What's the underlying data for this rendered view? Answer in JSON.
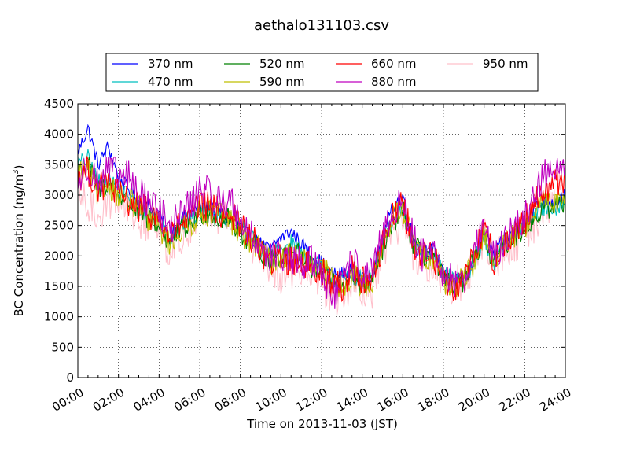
{
  "chart_data": {
    "type": "line",
    "title": "aethalo131103.csv",
    "xlabel": "Time on 2013-11-03 (JST)",
    "ylabel": "BC Concentration (ng/m",
    "ylabel_superscript": "3",
    "ylabel_suffix": ")",
    "xlim": [
      "00:00",
      "24:00"
    ],
    "ylim": [
      0,
      4500
    ],
    "x_ticks": [
      "00:00",
      "02:00",
      "04:00",
      "06:00",
      "08:00",
      "10:00",
      "12:00",
      "14:00",
      "16:00",
      "18:00",
      "20:00",
      "22:00",
      "24:00"
    ],
    "y_ticks": [
      0,
      500,
      1000,
      1500,
      2000,
      2500,
      3000,
      3500,
      4000,
      4500
    ],
    "grid": true,
    "legend_position": "top-center",
    "x": [
      "00:00",
      "00:30",
      "01:00",
      "01:30",
      "02:00",
      "02:30",
      "03:00",
      "03:30",
      "04:00",
      "04:30",
      "05:00",
      "05:30",
      "06:00",
      "06:30",
      "07:00",
      "07:30",
      "08:00",
      "08:30",
      "09:00",
      "09:30",
      "10:00",
      "10:30",
      "11:00",
      "11:30",
      "12:00",
      "12:30",
      "13:00",
      "13:30",
      "14:00",
      "14:30",
      "15:00",
      "15:30",
      "16:00",
      "16:30",
      "17:00",
      "17:30",
      "18:00",
      "18:30",
      "19:00",
      "19:30",
      "20:00",
      "20:30",
      "21:00",
      "21:30",
      "22:00",
      "22:30",
      "23:00",
      "23:30",
      "24:00"
    ],
    "series": [
      {
        "name": "370 nm",
        "color": "#0000ff",
        "values": [
          3700,
          4100,
          3500,
          3800,
          3300,
          3100,
          2900,
          2800,
          2700,
          2300,
          2600,
          2700,
          2800,
          2800,
          2700,
          2600,
          2500,
          2300,
          2200,
          2100,
          2300,
          2400,
          2200,
          2000,
          1900,
          1700,
          1700,
          1800,
          1600,
          1700,
          2300,
          2800,
          3000,
          2300,
          2100,
          2100,
          1700,
          1600,
          1600,
          1900,
          2400,
          2000,
          2300,
          2400,
          2600,
          2800,
          2900,
          2900,
          3000
        ]
      },
      {
        "name": "470 nm",
        "color": "#00bfbf",
        "values": [
          3500,
          3600,
          3200,
          3300,
          3100,
          3000,
          2800,
          2700,
          2600,
          2300,
          2500,
          2600,
          2700,
          2800,
          2700,
          2600,
          2500,
          2300,
          2100,
          2000,
          2100,
          2200,
          2100,
          1900,
          1800,
          1600,
          1600,
          1700,
          1600,
          1600,
          2200,
          2600,
          2800,
          2200,
          2000,
          2000,
          1700,
          1600,
          1600,
          1900,
          2300,
          1900,
          2200,
          2300,
          2500,
          2700,
          2800,
          2800,
          2900
        ]
      },
      {
        "name": "520 nm",
        "color": "#008000",
        "values": [
          3400,
          3500,
          3100,
          3200,
          3000,
          2900,
          2700,
          2600,
          2500,
          2200,
          2400,
          2500,
          2700,
          2700,
          2600,
          2600,
          2400,
          2200,
          2100,
          1900,
          2000,
          2100,
          2000,
          1800,
          1700,
          1600,
          1500,
          1700,
          1500,
          1600,
          2100,
          2500,
          2800,
          2200,
          2000,
          2000,
          1600,
          1500,
          1600,
          1900,
          2300,
          1900,
          2200,
          2300,
          2500,
          2600,
          2800,
          2800,
          2900
        ]
      },
      {
        "name": "590 nm",
        "color": "#bfbf00",
        "values": [
          3400,
          3400,
          3000,
          3200,
          3000,
          2900,
          2800,
          2600,
          2500,
          2200,
          2400,
          2500,
          2700,
          2700,
          2700,
          2600,
          2400,
          2200,
          2100,
          1900,
          2000,
          2000,
          2000,
          1800,
          1800,
          1600,
          1500,
          1700,
          1500,
          1600,
          2200,
          2600,
          2800,
          2200,
          2000,
          2000,
          1600,
          1500,
          1600,
          1900,
          2400,
          1900,
          2200,
          2300,
          2500,
          2700,
          2900,
          2900,
          3000
        ]
      },
      {
        "name": "660 nm",
        "color": "#ff0000",
        "values": [
          3300,
          3400,
          3100,
          3200,
          3000,
          2900,
          2800,
          2700,
          2600,
          2300,
          2500,
          2600,
          2800,
          2800,
          2700,
          2700,
          2500,
          2300,
          2100,
          1900,
          2000,
          1900,
          1900,
          1800,
          1800,
          1500,
          1500,
          1800,
          1600,
          1600,
          2200,
          2700,
          2900,
          2200,
          2000,
          2000,
          1600,
          1500,
          1600,
          2000,
          2500,
          1900,
          2200,
          2400,
          2600,
          2900,
          3100,
          3200,
          3300
        ]
      },
      {
        "name": "880 nm",
        "color": "#bf00bf",
        "values": [
          3200,
          3500,
          3200,
          3400,
          3300,
          3300,
          3000,
          2900,
          2800,
          2400,
          2700,
          2800,
          3100,
          3000,
          2900,
          2900,
          2600,
          2300,
          2200,
          2000,
          2000,
          1900,
          1900,
          1900,
          1800,
          1300,
          1500,
          1900,
          1700,
          1700,
          2300,
          2700,
          2900,
          2300,
          2000,
          2000,
          1700,
          1600,
          1600,
          2100,
          2500,
          1900,
          2300,
          2400,
          2600,
          3100,
          3300,
          3500,
          3600
        ]
      },
      {
        "name": "950 nm",
        "color": "#ffc0cb",
        "values": [
          3000,
          2800,
          2700,
          2900,
          3000,
          2800,
          2600,
          2500,
          2500,
          2100,
          2300,
          2500,
          2800,
          2800,
          2600,
          2600,
          2400,
          2200,
          2100,
          1800,
          1700,
          1700,
          1700,
          1700,
          1600,
          1300,
          1300,
          1600,
          1300,
          1400,
          2000,
          2400,
          2600,
          2100,
          1900,
          1900,
          1600,
          1500,
          1600,
          1900,
          2300,
          1900,
          2100,
          2200,
          2400,
          2500,
          2700,
          2900,
          3300
        ]
      }
    ]
  }
}
